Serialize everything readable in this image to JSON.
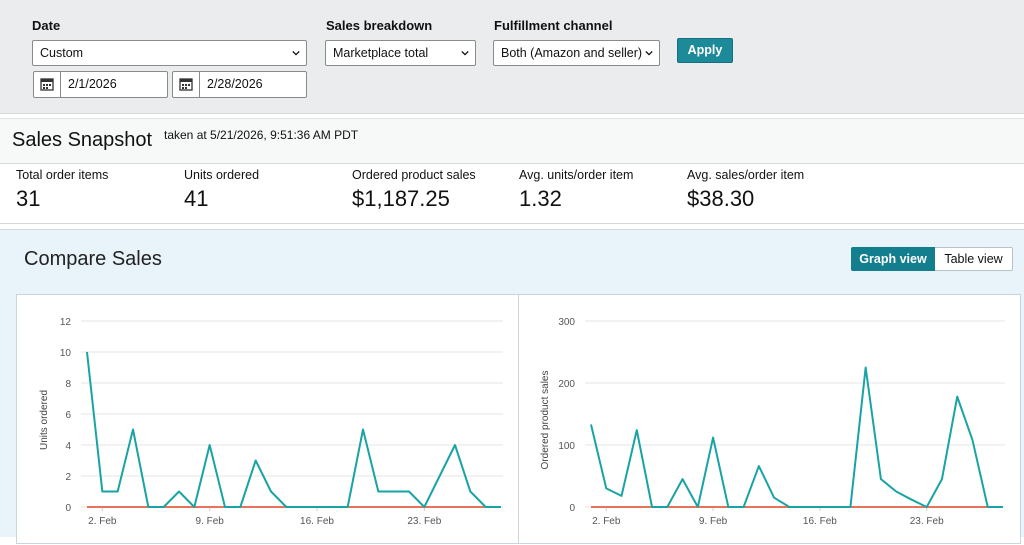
{
  "filters": {
    "date": {
      "label": "Date",
      "selected": "Custom",
      "start": "2/1/2026",
      "end": "2/28/2026"
    },
    "sales_breakdown": {
      "label": "Sales breakdown",
      "selected": "Marketplace total"
    },
    "fulfillment": {
      "label": "Fulfillment channel",
      "selected": "Both (Amazon and seller)"
    },
    "apply_label": "Apply"
  },
  "snapshot": {
    "title": "Sales Snapshot",
    "taken": "taken at 5/21/2026, 9:51:36 AM PDT",
    "metrics": [
      {
        "label": "Total order items",
        "value": "31"
      },
      {
        "label": "Units ordered",
        "value": "41"
      },
      {
        "label": "Ordered product sales",
        "value": "$1,187.25"
      },
      {
        "label": "Avg. units/order item",
        "value": "1.32"
      },
      {
        "label": "Avg. sales/order item",
        "value": "$38.30"
      }
    ]
  },
  "compare": {
    "title": "Compare Sales",
    "graph_view_label": "Graph view",
    "table_view_label": "Table view"
  },
  "colors": {
    "accent": "#1d8a99",
    "series_current": "#1aa3a5",
    "series_compare": "#e8735a"
  },
  "chart_data": [
    {
      "type": "line",
      "ylabel": "Units ordered",
      "xlabel": "",
      "ylim": [
        0,
        12
      ],
      "yticks": [
        0,
        2,
        4,
        6,
        8,
        10,
        12
      ],
      "xticks": [
        "2. Feb",
        "9. Feb",
        "16. Feb",
        "23. Feb"
      ],
      "x": [
        1,
        2,
        3,
        4,
        5,
        6,
        7,
        8,
        9,
        10,
        11,
        12,
        13,
        14,
        15,
        16,
        17,
        18,
        19,
        20,
        21,
        22,
        23,
        24,
        25,
        26,
        27,
        28
      ],
      "series": [
        {
          "values": [
            10,
            1,
            1,
            5,
            0,
            0,
            1,
            0,
            4,
            0,
            0,
            3,
            1,
            0,
            0,
            0,
            0,
            0,
            5,
            1,
            1,
            1,
            0,
            2,
            4,
            1,
            0,
            0
          ]
        },
        {
          "values": [
            0,
            0,
            0,
            0,
            0,
            0,
            0,
            0,
            0,
            0,
            0,
            0,
            0,
            0,
            0,
            0,
            0,
            0,
            0,
            0,
            0,
            0,
            0,
            0,
            0,
            0,
            0,
            0
          ]
        }
      ]
    },
    {
      "type": "line",
      "ylabel": "Ordered product sales",
      "xlabel": "",
      "ylim": [
        0,
        300
      ],
      "yticks": [
        0,
        100,
        200,
        300
      ],
      "xticks": [
        "2. Feb",
        "9. Feb",
        "16. Feb",
        "23. Feb"
      ],
      "x": [
        1,
        2,
        3,
        4,
        5,
        6,
        7,
        8,
        9,
        10,
        11,
        12,
        13,
        14,
        15,
        16,
        17,
        18,
        19,
        20,
        21,
        22,
        23,
        24,
        25,
        26,
        27,
        28
      ],
      "series": [
        {
          "values": [
            133,
            30,
            18,
            124,
            0,
            0,
            45,
            0,
            112,
            0,
            0,
            66,
            15,
            0,
            0,
            0,
            0,
            0,
            225,
            45,
            25,
            12,
            0,
            45,
            178,
            108,
            0,
            0
          ]
        },
        {
          "values": [
            0,
            0,
            0,
            0,
            0,
            0,
            0,
            0,
            0,
            0,
            0,
            0,
            0,
            0,
            0,
            0,
            0,
            0,
            0,
            0,
            0,
            0,
            0,
            0,
            0,
            0,
            0,
            0
          ]
        }
      ]
    }
  ]
}
